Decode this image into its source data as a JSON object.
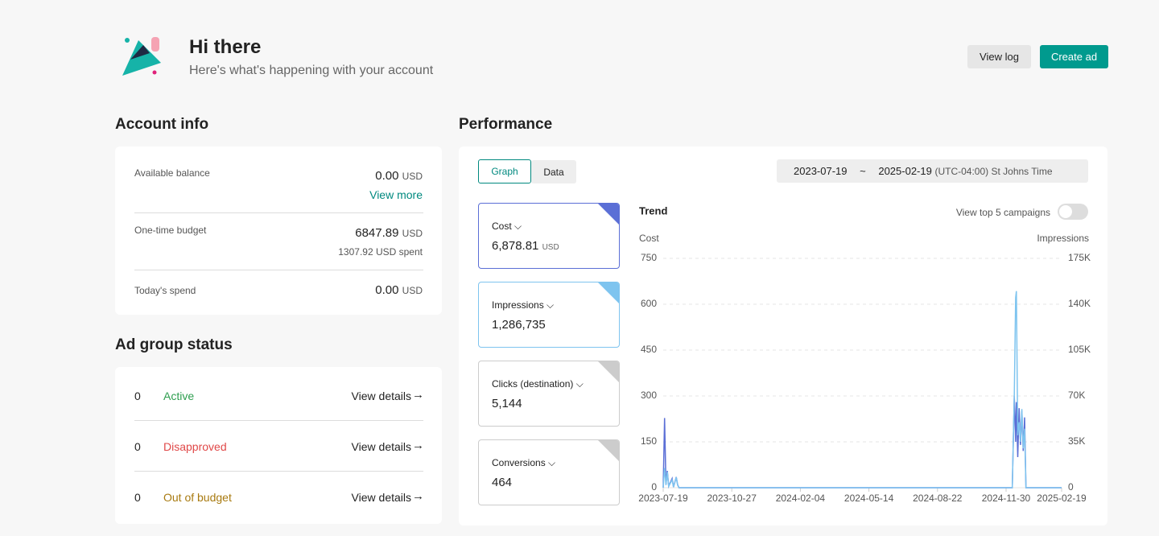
{
  "header": {
    "title": "Hi there",
    "subtitle": "Here's what's happening with your account",
    "buttons": [
      "View log",
      "Create ad"
    ]
  },
  "account_info": {
    "title": "Account info",
    "balance": {
      "label": "Available balance",
      "amount": "0.00",
      "unit": "USD",
      "link": "View more"
    },
    "budget": {
      "label": "One-time budget",
      "amount": "6847.89",
      "unit": "USD",
      "spent": "1307.92 USD spent"
    },
    "spend": {
      "label": "Today's spend",
      "amount": "0.00",
      "unit": "USD"
    }
  },
  "ad_group_status": {
    "title": "Ad group status",
    "rows": [
      {
        "count": "0",
        "status": "Active",
        "link": "View details"
      },
      {
        "count": "0",
        "status": "Disapproved",
        "link": "View details"
      },
      {
        "count": "0",
        "status": "Out of budget",
        "link": "View details"
      }
    ]
  },
  "performance": {
    "title": "Performance",
    "tabs": [
      "Graph",
      "Data"
    ],
    "date_start": "2023-07-19",
    "date_sep": "~",
    "date_end": "2025-02-19",
    "timezone": "(UTC-04:00) St Johns Time",
    "metrics": [
      {
        "label": "Cost",
        "value": "6,878.81",
        "unit": "USD"
      },
      {
        "label": "Impressions",
        "value": "1,286,735"
      },
      {
        "label": "Clicks (destination)",
        "value": "5,144"
      },
      {
        "label": "Conversions",
        "value": "464"
      }
    ],
    "toggle_label": "View top 5 campaigns"
  },
  "chart_data": {
    "type": "line",
    "title": "Trend",
    "x": [
      "2023-07-19",
      "2023-07-21",
      "2023-07-23",
      "2023-07-25",
      "2023-07-27",
      "2023-08-01",
      "2023-08-03",
      "2023-08-07",
      "2023-08-09",
      "2023-08-11",
      "2024-12-09",
      "2024-12-12",
      "2024-12-14",
      "2024-12-15",
      "2024-12-17",
      "2024-12-19",
      "2024-12-21",
      "2024-12-23",
      "2024-12-25",
      "2024-12-27",
      "2024-12-29",
      "2025-02-19"
    ],
    "series": [
      {
        "name": "Cost",
        "color": "#5b6fd6",
        "values": [
          0,
          228,
          10,
          55,
          5,
          30,
          2,
          35,
          10,
          0,
          0,
          300,
          150,
          280,
          100,
          260,
          140,
          250,
          120,
          230,
          0,
          0
        ]
      },
      {
        "name": "Impressions",
        "color": "#7ec4ef",
        "axis": "y2",
        "values": [
          0,
          15000,
          2000,
          12000,
          1000,
          6000,
          500,
          8000,
          2000,
          0,
          0,
          70000,
          145000,
          150000,
          40000,
          50000,
          35000,
          60000,
          30000,
          45000,
          0,
          0
        ]
      }
    ],
    "xlim": [
      "2023-07-19",
      "2025-02-19"
    ],
    "xticks": [
      "2023-07-19",
      "2023-10-27",
      "2024-02-04",
      "2024-05-14",
      "2024-08-22",
      "2024-11-30",
      "2025-02-19"
    ],
    "ylim": [
      0,
      750
    ],
    "yticks": [
      0,
      150,
      300,
      450,
      600,
      750
    ],
    "y2lim": [
      0,
      175000
    ],
    "y2ticks": [
      {
        "value": 0,
        "label": "0"
      },
      {
        "value": 35000,
        "label": "35K"
      },
      {
        "value": 70000,
        "label": "70K"
      },
      {
        "value": 105000,
        "label": "105K"
      },
      {
        "value": 140000,
        "label": "140K"
      },
      {
        "value": 175000,
        "label": "175K"
      }
    ],
    "grid": true
  }
}
